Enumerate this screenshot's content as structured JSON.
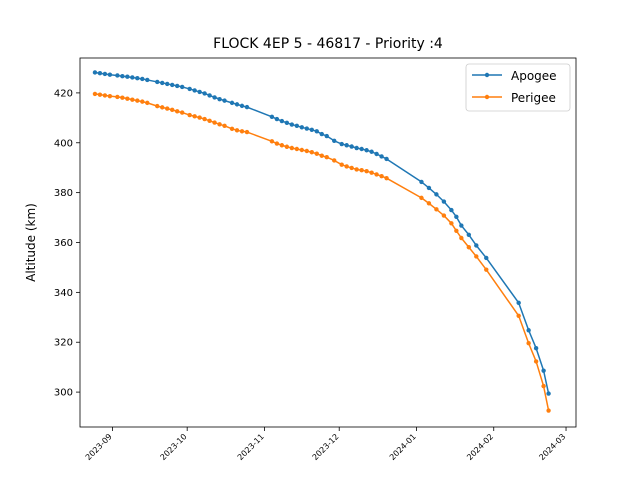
{
  "chart_data": {
    "type": "line",
    "title": "FLOCK 4EP 5 - 46817 - Priority :4",
    "xlabel": "",
    "ylabel": "Altitude (km)",
    "x_type": "date",
    "xlim": [
      "2023-08-19",
      "2024-03-05"
    ],
    "ylim": [
      286,
      434
    ],
    "x_ticks": [
      "2023-09",
      "2023-10",
      "2023-11",
      "2023-12",
      "2024-01",
      "2024-02",
      "2024-03"
    ],
    "y_ticks": [
      300,
      320,
      340,
      360,
      380,
      400,
      420
    ],
    "grid": false,
    "legend_position": "top-right",
    "series": [
      {
        "name": "Apogee",
        "color": "#1f77b4",
        "points": [
          [
            "2023-08-25",
            428.2
          ],
          [
            "2023-08-27",
            427.9
          ],
          [
            "2023-08-29",
            427.6
          ],
          [
            "2023-08-31",
            427.3
          ],
          [
            "2023-09-03",
            427.0
          ],
          [
            "2023-09-05",
            426.7
          ],
          [
            "2023-09-07",
            426.5
          ],
          [
            "2023-09-09",
            426.2
          ],
          [
            "2023-09-11",
            425.9
          ],
          [
            "2023-09-13",
            425.6
          ],
          [
            "2023-09-15",
            425.2
          ],
          [
            "2023-09-19",
            424.4
          ],
          [
            "2023-09-21",
            424.0
          ],
          [
            "2023-09-23",
            423.6
          ],
          [
            "2023-09-25",
            423.2
          ],
          [
            "2023-09-27",
            422.8
          ],
          [
            "2023-09-29",
            422.4
          ],
          [
            "2023-10-02",
            421.6
          ],
          [
            "2023-10-04",
            421.0
          ],
          [
            "2023-10-06",
            420.4
          ],
          [
            "2023-10-08",
            419.8
          ],
          [
            "2023-10-10",
            419.0
          ],
          [
            "2023-10-12",
            418.2
          ],
          [
            "2023-10-14",
            417.5
          ],
          [
            "2023-10-16",
            416.9
          ],
          [
            "2023-10-19",
            416.0
          ],
          [
            "2023-10-21",
            415.4
          ],
          [
            "2023-10-23",
            414.8
          ],
          [
            "2023-10-25",
            414.3
          ],
          [
            "2023-11-04",
            410.4
          ],
          [
            "2023-11-06",
            409.5
          ],
          [
            "2023-11-08",
            408.7
          ],
          [
            "2023-11-10",
            408.0
          ],
          [
            "2023-11-12",
            407.3
          ],
          [
            "2023-11-14",
            406.8
          ],
          [
            "2023-11-16",
            406.2
          ],
          [
            "2023-11-18",
            405.7
          ],
          [
            "2023-11-20",
            405.2
          ],
          [
            "2023-11-22",
            404.6
          ],
          [
            "2023-11-24",
            403.5
          ],
          [
            "2023-11-26",
            402.7
          ],
          [
            "2023-11-29",
            400.8
          ],
          [
            "2023-12-02",
            399.5
          ],
          [
            "2023-12-04",
            399.0
          ],
          [
            "2023-12-06",
            398.5
          ],
          [
            "2023-12-08",
            397.9
          ],
          [
            "2023-12-10",
            397.5
          ],
          [
            "2023-12-12",
            397.0
          ],
          [
            "2023-12-14",
            396.4
          ],
          [
            "2023-12-16",
            395.5
          ],
          [
            "2023-12-18",
            394.5
          ],
          [
            "2023-12-20",
            393.5
          ],
          [
            "2024-01-03",
            384.3
          ],
          [
            "2024-01-06",
            381.9
          ],
          [
            "2024-01-09",
            379.3
          ],
          [
            "2024-01-12",
            376.4
          ],
          [
            "2024-01-15",
            373.0
          ],
          [
            "2024-01-17",
            370.3
          ],
          [
            "2024-01-19",
            366.8
          ],
          [
            "2024-01-22",
            363.1
          ],
          [
            "2024-01-25",
            358.8
          ],
          [
            "2024-01-29",
            353.8
          ],
          [
            "2024-02-11",
            335.8
          ],
          [
            "2024-02-15",
            324.8
          ],
          [
            "2024-02-18",
            317.6
          ],
          [
            "2024-02-21",
            308.6
          ],
          [
            "2024-02-23",
            299.4
          ]
        ]
      },
      {
        "name": "Perigee",
        "color": "#ff7f0e",
        "points": [
          [
            "2023-08-25",
            419.6
          ],
          [
            "2023-08-27",
            419.3
          ],
          [
            "2023-08-29",
            419.0
          ],
          [
            "2023-08-31",
            418.7
          ],
          [
            "2023-09-03",
            418.4
          ],
          [
            "2023-09-05",
            418.1
          ],
          [
            "2023-09-07",
            417.7
          ],
          [
            "2023-09-09",
            417.3
          ],
          [
            "2023-09-11",
            416.9
          ],
          [
            "2023-09-13",
            416.5
          ],
          [
            "2023-09-15",
            416.0
          ],
          [
            "2023-09-19",
            414.7
          ],
          [
            "2023-09-21",
            414.2
          ],
          [
            "2023-09-23",
            413.7
          ],
          [
            "2023-09-25",
            413.2
          ],
          [
            "2023-09-27",
            412.6
          ],
          [
            "2023-09-29",
            412.1
          ],
          [
            "2023-10-02",
            411.1
          ],
          [
            "2023-10-04",
            410.6
          ],
          [
            "2023-10-06",
            410.1
          ],
          [
            "2023-10-08",
            409.5
          ],
          [
            "2023-10-10",
            408.8
          ],
          [
            "2023-10-12",
            408.1
          ],
          [
            "2023-10-14",
            407.4
          ],
          [
            "2023-10-16",
            406.8
          ],
          [
            "2023-10-19",
            405.6
          ],
          [
            "2023-10-21",
            405.0
          ],
          [
            "2023-10-23",
            404.6
          ],
          [
            "2023-10-25",
            404.3
          ],
          [
            "2023-11-04",
            400.6
          ],
          [
            "2023-11-06",
            399.7
          ],
          [
            "2023-11-08",
            399.0
          ],
          [
            "2023-11-10",
            398.4
          ],
          [
            "2023-11-12",
            397.9
          ],
          [
            "2023-11-14",
            397.5
          ],
          [
            "2023-11-16",
            397.1
          ],
          [
            "2023-11-18",
            396.7
          ],
          [
            "2023-11-20",
            396.2
          ],
          [
            "2023-11-22",
            395.6
          ],
          [
            "2023-11-24",
            394.8
          ],
          [
            "2023-11-26",
            394.2
          ],
          [
            "2023-11-29",
            392.9
          ],
          [
            "2023-12-02",
            391.2
          ],
          [
            "2023-12-04",
            390.5
          ],
          [
            "2023-12-06",
            389.9
          ],
          [
            "2023-12-08",
            389.3
          ],
          [
            "2023-12-10",
            389.0
          ],
          [
            "2023-12-12",
            388.6
          ],
          [
            "2023-12-14",
            388.0
          ],
          [
            "2023-12-16",
            387.3
          ],
          [
            "2023-12-18",
            386.6
          ],
          [
            "2023-12-20",
            385.8
          ],
          [
            "2024-01-03",
            377.9
          ],
          [
            "2024-01-06",
            375.7
          ],
          [
            "2024-01-09",
            373.3
          ],
          [
            "2024-01-12",
            370.8
          ],
          [
            "2024-01-15",
            367.7
          ],
          [
            "2024-01-17",
            364.7
          ],
          [
            "2024-01-19",
            361.8
          ],
          [
            "2024-01-22",
            358.1
          ],
          [
            "2024-01-25",
            354.4
          ],
          [
            "2024-01-29",
            349.1
          ],
          [
            "2024-02-11",
            330.6
          ],
          [
            "2024-02-15",
            319.6
          ],
          [
            "2024-02-18",
            312.3
          ],
          [
            "2024-02-21",
            302.4
          ],
          [
            "2024-02-23",
            292.6
          ]
        ]
      }
    ]
  }
}
